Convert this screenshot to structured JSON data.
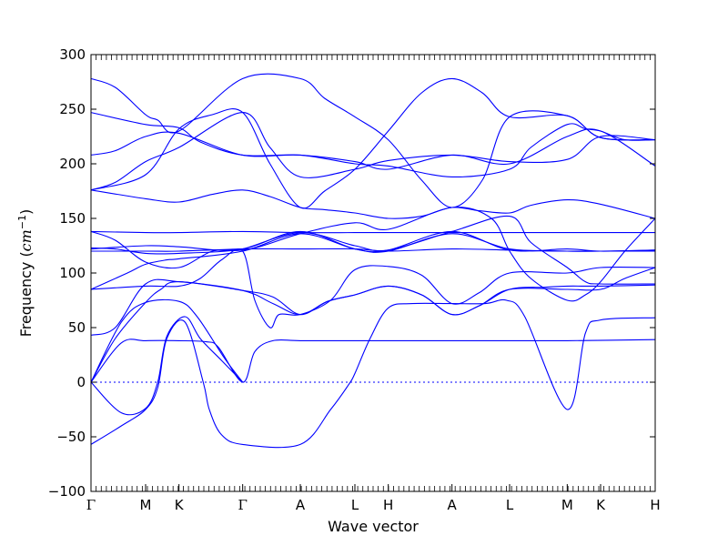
{
  "chart_data": {
    "type": "line",
    "xlabel": "Wave vector",
    "ylabel_text": "Frequency (",
    "ylabel_unit": "cm",
    "ylabel_exp": "−1",
    "ylabel_close": ")",
    "ylim": [
      -100,
      300
    ],
    "yticks": [
      -100,
      -50,
      0,
      50,
      100,
      150,
      200,
      250,
      300
    ],
    "ytick_labels": [
      "−100",
      "−50",
      "0",
      "50",
      "100",
      "150",
      "200",
      "250",
      "300"
    ],
    "xlim": [
      0,
      18.6
    ],
    "high_symmetry_points": [
      {
        "label": "Γ",
        "x": 0
      },
      {
        "label": "M",
        "x": 1.8
      },
      {
        "label": "K",
        "x": 2.9
      },
      {
        "label": "Γ",
        "x": 5.0
      },
      {
        "label": "A",
        "x": 6.9
      },
      {
        "label": "L",
        "x": 8.7
      },
      {
        "label": "H",
        "x": 9.8
      },
      {
        "label": "A",
        "x": 11.9
      },
      {
        "label": "L",
        "x": 13.8
      },
      {
        "label": "M",
        "x": 15.7
      },
      {
        "label": "K",
        "x": 16.8
      },
      {
        "label": "H",
        "x": 18.6
      }
    ],
    "zero_line": true,
    "line_color": "#0000ff",
    "zero_line_color": "#0000ff",
    "series": [
      {
        "values": [
          [
            0,
            0
          ],
          [
            1.0,
            -28
          ],
          [
            1.8,
            -24
          ],
          [
            2.2,
            0
          ],
          [
            2.5,
            42
          ],
          [
            3.1,
            60
          ],
          [
            3.6,
            40
          ],
          [
            4.3,
            20
          ],
          [
            5.0,
            0
          ]
        ]
      },
      {
        "values": [
          [
            0,
            -57
          ],
          [
            1.0,
            -40
          ],
          [
            1.8,
            -25
          ],
          [
            2.2,
            -5
          ],
          [
            2.5,
            40
          ],
          [
            3.1,
            55
          ],
          [
            3.7,
            0
          ],
          [
            3.9,
            -25
          ],
          [
            4.3,
            -48
          ],
          [
            5.0,
            -57
          ],
          [
            6.9,
            -57
          ],
          [
            7.9,
            -25
          ],
          [
            8.5,
            -2
          ],
          [
            8.7,
            8
          ],
          [
            9.2,
            40
          ],
          [
            9.8,
            68
          ],
          [
            10.6,
            72
          ],
          [
            11.9,
            72
          ],
          [
            13.0,
            72
          ],
          [
            13.7,
            75
          ],
          [
            14.3,
            60
          ],
          [
            15.7,
            -25
          ],
          [
            16.3,
            45
          ],
          [
            16.8,
            57
          ],
          [
            18.6,
            59
          ]
        ]
      },
      {
        "values": [
          [
            0,
            0
          ],
          [
            1.0,
            36
          ],
          [
            1.8,
            38
          ],
          [
            2.9,
            38
          ],
          [
            3.8,
            37
          ],
          [
            4.2,
            32
          ],
          [
            5.0,
            0
          ],
          [
            5.4,
            28
          ],
          [
            6.0,
            38
          ],
          [
            6.9,
            38
          ],
          [
            8.7,
            38
          ],
          [
            11.9,
            38
          ],
          [
            13.8,
            38
          ],
          [
            15.7,
            38
          ],
          [
            18.6,
            39
          ]
        ]
      },
      {
        "values": [
          [
            0,
            0
          ],
          [
            1.0,
            55
          ],
          [
            1.8,
            73
          ],
          [
            2.9,
            74
          ],
          [
            3.5,
            60
          ],
          [
            4.4,
            22
          ],
          [
            5.0,
            0
          ]
        ]
      },
      {
        "values": [
          [
            0,
            0
          ],
          [
            0.8,
            40
          ],
          [
            1.8,
            73
          ],
          [
            2.3,
            85
          ],
          [
            2.9,
            92
          ],
          [
            5.0,
            84
          ],
          [
            6.0,
            78
          ],
          [
            6.9,
            62
          ],
          [
            7.8,
            74
          ],
          [
            8.7,
            80
          ],
          [
            9.8,
            88
          ],
          [
            10.9,
            80
          ],
          [
            11.9,
            62
          ],
          [
            12.8,
            70
          ],
          [
            13.8,
            85
          ],
          [
            15.0,
            87
          ],
          [
            15.7,
            88
          ],
          [
            16.8,
            88
          ],
          [
            18.6,
            89
          ]
        ]
      },
      {
        "values": [
          [
            0,
            43
          ],
          [
            0.8,
            50
          ],
          [
            1.8,
            90
          ],
          [
            2.9,
            92
          ],
          [
            5.0,
            84
          ],
          [
            6.0,
            72
          ],
          [
            6.9,
            62
          ],
          [
            7.8,
            74
          ],
          [
            8.7,
            80
          ],
          [
            9.8,
            88
          ],
          [
            10.9,
            80
          ],
          [
            11.9,
            62
          ],
          [
            12.8,
            70
          ],
          [
            13.8,
            85
          ],
          [
            15.7,
            85
          ],
          [
            16.8,
            85
          ],
          [
            17.6,
            95
          ],
          [
            18.6,
            105
          ]
        ]
      },
      {
        "values": [
          [
            0,
            85
          ],
          [
            1.8,
            88
          ],
          [
            2.9,
            88
          ],
          [
            3.6,
            95
          ],
          [
            4.3,
            112
          ],
          [
            5.0,
            120
          ],
          [
            5.4,
            75
          ],
          [
            5.9,
            50
          ],
          [
            6.2,
            62
          ],
          [
            6.9,
            62
          ],
          [
            7.9,
            75
          ],
          [
            8.7,
            103
          ],
          [
            9.8,
            106
          ],
          [
            10.9,
            98
          ],
          [
            11.9,
            72
          ],
          [
            12.8,
            82
          ],
          [
            13.8,
            100
          ],
          [
            15.7,
            100
          ],
          [
            16.8,
            105
          ],
          [
            18.6,
            105
          ]
        ]
      },
      {
        "values": [
          [
            0,
            85
          ],
          [
            1.2,
            100
          ],
          [
            1.8,
            108
          ],
          [
            2.5,
            112
          ],
          [
            2.9,
            113
          ],
          [
            5.0,
            120
          ],
          [
            6.9,
            136
          ],
          [
            8.7,
            122
          ],
          [
            9.8,
            120
          ],
          [
            11.9,
            136
          ],
          [
            13.8,
            122
          ],
          [
            15.7,
            120
          ],
          [
            16.8,
            120
          ],
          [
            18.6,
            120
          ]
        ]
      },
      {
        "values": [
          [
            0,
            120
          ],
          [
            1.8,
            120
          ],
          [
            2.9,
            120
          ],
          [
            5.0,
            122
          ],
          [
            6.9,
            122
          ],
          [
            8.7,
            122
          ],
          [
            9.8,
            120
          ],
          [
            11.9,
            122
          ],
          [
            13.8,
            121
          ],
          [
            15.7,
            120
          ],
          [
            16.8,
            120
          ],
          [
            18.6,
            121
          ]
        ]
      },
      {
        "values": [
          [
            0,
            122
          ],
          [
            1.8,
            125
          ],
          [
            2.9,
            124
          ],
          [
            5.0,
            121
          ],
          [
            6.9,
            136
          ],
          [
            8.7,
            146
          ],
          [
            9.8,
            140
          ],
          [
            11.9,
            160
          ],
          [
            13.2,
            150
          ],
          [
            13.8,
            120
          ],
          [
            14.5,
            95
          ],
          [
            15.7,
            75
          ],
          [
            16.3,
            80
          ],
          [
            16.8,
            92
          ],
          [
            17.6,
            120
          ],
          [
            18.6,
            150
          ]
        ]
      },
      {
        "values": [
          [
            0,
            123
          ],
          [
            0.8,
            122
          ],
          [
            1.8,
            118
          ],
          [
            2.9,
            118
          ],
          [
            5.0,
            122
          ],
          [
            6.9,
            138
          ],
          [
            8.7,
            122
          ],
          [
            9.8,
            121
          ],
          [
            11.9,
            138
          ],
          [
            13.8,
            121
          ],
          [
            15.7,
            122
          ],
          [
            16.8,
            120
          ],
          [
            18.6,
            121
          ]
        ]
      },
      {
        "values": [
          [
            0,
            138
          ],
          [
            1.8,
            137
          ],
          [
            2.9,
            137
          ],
          [
            5.0,
            138
          ],
          [
            6.9,
            137
          ],
          [
            8.7,
            137
          ],
          [
            9.8,
            137
          ],
          [
            11.9,
            137
          ],
          [
            13.8,
            137
          ],
          [
            15.7,
            137
          ],
          [
            18.6,
            137
          ]
        ]
      },
      {
        "values": [
          [
            0,
            138
          ],
          [
            0.8,
            130
          ],
          [
            1.8,
            110
          ],
          [
            2.9,
            105
          ],
          [
            4.0,
            120
          ],
          [
            5.0,
            122
          ],
          [
            6.9,
            137
          ],
          [
            8.7,
            125
          ],
          [
            9.8,
            121
          ],
          [
            11.9,
            138
          ],
          [
            13.8,
            152
          ],
          [
            14.5,
            128
          ],
          [
            15.7,
            105
          ],
          [
            16.3,
            92
          ],
          [
            16.8,
            90
          ],
          [
            18.6,
            90
          ]
        ]
      },
      {
        "values": [
          [
            0,
            176
          ],
          [
            1.8,
            168
          ],
          [
            2.9,
            165
          ],
          [
            4.0,
            172
          ],
          [
            5.0,
            176
          ],
          [
            5.9,
            170
          ],
          [
            6.9,
            160
          ],
          [
            7.7,
            158
          ],
          [
            8.7,
            155
          ],
          [
            9.8,
            150
          ],
          [
            10.9,
            152
          ],
          [
            11.9,
            160
          ],
          [
            12.8,
            157
          ],
          [
            13.8,
            155
          ],
          [
            14.5,
            162
          ],
          [
            15.7,
            167
          ],
          [
            16.8,
            163
          ],
          [
            18.6,
            150
          ]
        ]
      },
      {
        "values": [
          [
            0,
            176
          ],
          [
            0.8,
            183
          ],
          [
            1.8,
            202
          ],
          [
            2.9,
            215
          ],
          [
            5.0,
            247
          ],
          [
            5.9,
            215
          ],
          [
            6.9,
            188
          ],
          [
            8.7,
            195
          ],
          [
            9.8,
            203
          ],
          [
            11.9,
            208
          ],
          [
            13.8,
            202
          ],
          [
            15.7,
            204
          ],
          [
            16.8,
            225
          ],
          [
            18.6,
            222
          ]
        ]
      },
      {
        "values": [
          [
            0,
            208
          ],
          [
            0.8,
            212
          ],
          [
            1.8,
            225
          ],
          [
            2.9,
            228
          ],
          [
            5.0,
            208
          ],
          [
            6.9,
            208
          ],
          [
            8.7,
            200
          ],
          [
            9.8,
            198
          ],
          [
            11.9,
            188
          ],
          [
            13.8,
            195
          ],
          [
            14.5,
            215
          ],
          [
            15.7,
            236
          ],
          [
            16.3,
            232
          ],
          [
            16.8,
            230
          ],
          [
            17.6,
            222
          ],
          [
            18.6,
            222
          ]
        ]
      },
      {
        "values": [
          [
            0,
            247
          ],
          [
            1.8,
            236
          ],
          [
            2.9,
            233
          ],
          [
            3.6,
            220
          ],
          [
            5.0,
            208
          ],
          [
            6.9,
            208
          ],
          [
            8.7,
            202
          ],
          [
            9.8,
            195
          ],
          [
            11.9,
            208
          ],
          [
            13.8,
            200
          ],
          [
            15.7,
            225
          ],
          [
            16.8,
            230
          ],
          [
            18.6,
            198
          ]
        ]
      },
      {
        "values": [
          [
            0,
            278
          ],
          [
            0.8,
            270
          ],
          [
            1.8,
            245
          ],
          [
            2.2,
            240
          ],
          [
            2.9,
            230
          ],
          [
            5.0,
            278
          ],
          [
            6.9,
            278
          ],
          [
            7.7,
            260
          ],
          [
            8.7,
            243
          ],
          [
            9.8,
            222
          ],
          [
            10.9,
            185
          ],
          [
            11.9,
            160
          ],
          [
            12.9,
            185
          ],
          [
            13.8,
            243
          ],
          [
            15.7,
            244
          ],
          [
            16.8,
            224
          ],
          [
            18.6,
            222
          ]
        ]
      },
      {
        "values": [
          [
            0,
            176
          ],
          [
            1.8,
            190
          ],
          [
            2.9,
            232
          ],
          [
            4.0,
            245
          ],
          [
            5.0,
            247
          ],
          [
            5.9,
            200
          ],
          [
            6.9,
            160
          ],
          [
            7.7,
            175
          ],
          [
            8.7,
            195
          ],
          [
            9.8,
            230
          ],
          [
            10.9,
            265
          ],
          [
            11.9,
            278
          ],
          [
            12.9,
            265
          ],
          [
            13.8,
            243
          ],
          [
            15.7,
            244
          ],
          [
            16.8,
            224
          ],
          [
            18.6,
            222
          ]
        ]
      }
    ]
  }
}
